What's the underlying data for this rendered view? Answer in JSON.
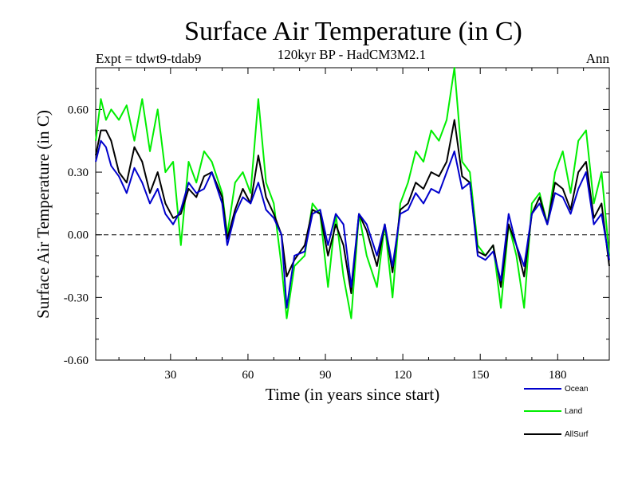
{
  "chart_data": {
    "type": "line",
    "title": "Surface Air Temperature (in C)",
    "subtitle": "120kyr BP - HadCM3M2.1",
    "expt_label": "Expt = tdwt9-tdab9",
    "period_label": "Ann",
    "xlabel": "Time (in years since start)",
    "ylabel": "Surface Air Temperature (in C)",
    "xlim": [
      1,
      200
    ],
    "ylim": [
      -0.6,
      0.8
    ],
    "xticks": [
      30,
      60,
      90,
      120,
      150,
      180
    ],
    "xtick_labels": [
      "30",
      "60",
      "90",
      "120",
      "150",
      "180"
    ],
    "yticks": [
      -0.6,
      -0.3,
      0.0,
      0.3,
      0.6
    ],
    "ytick_labels": [
      "-0.60",
      "-0.30",
      "0.00",
      "0.30",
      "0.60"
    ],
    "zero_line": "dashed",
    "legend_position": "bottom-right",
    "series": [
      {
        "name": "Ocean",
        "color": "#0000cc",
        "x": [
          1,
          3,
          5,
          7,
          10,
          13,
          16,
          19,
          22,
          25,
          28,
          31,
          34,
          37,
          40,
          43,
          46,
          50,
          52,
          55,
          58,
          61,
          64,
          67,
          70,
          73,
          75,
          78,
          82,
          85,
          88,
          91,
          94,
          97,
          100,
          103,
          106,
          110,
          113,
          116,
          119,
          122,
          125,
          128,
          131,
          134,
          137,
          140,
          143,
          146,
          149,
          152,
          155,
          158,
          161,
          164,
          167,
          170,
          173,
          176,
          179,
          182,
          185,
          188,
          191,
          194,
          197,
          200
        ],
        "values": [
          0.35,
          0.45,
          0.42,
          0.33,
          0.28,
          0.2,
          0.32,
          0.25,
          0.15,
          0.22,
          0.1,
          0.05,
          0.12,
          0.25,
          0.2,
          0.22,
          0.3,
          0.15,
          -0.05,
          0.1,
          0.18,
          0.15,
          0.25,
          0.12,
          0.08,
          0.0,
          -0.35,
          -0.1,
          -0.08,
          0.1,
          0.12,
          -0.05,
          0.1,
          0.05,
          -0.25,
          0.1,
          0.05,
          -0.1,
          0.05,
          -0.15,
          0.1,
          0.12,
          0.2,
          0.15,
          0.22,
          0.2,
          0.3,
          0.4,
          0.22,
          0.25,
          -0.1,
          -0.12,
          -0.08,
          -0.22,
          0.1,
          -0.05,
          -0.15,
          0.1,
          0.15,
          0.05,
          0.2,
          0.18,
          0.1,
          0.22,
          0.3,
          0.05,
          0.1,
          -0.12
        ]
      },
      {
        "name": "Land",
        "color": "#00ee00",
        "x": [
          1,
          3,
          5,
          7,
          10,
          13,
          16,
          19,
          22,
          25,
          28,
          31,
          34,
          37,
          40,
          43,
          46,
          50,
          52,
          55,
          58,
          61,
          64,
          67,
          70,
          73,
          75,
          78,
          82,
          85,
          88,
          91,
          94,
          97,
          100,
          103,
          106,
          110,
          113,
          116,
          119,
          122,
          125,
          128,
          131,
          134,
          137,
          140,
          143,
          146,
          149,
          152,
          155,
          158,
          161,
          164,
          167,
          170,
          173,
          176,
          179,
          182,
          185,
          188,
          191,
          194,
          197,
          200
        ],
        "values": [
          0.45,
          0.65,
          0.55,
          0.6,
          0.55,
          0.62,
          0.45,
          0.65,
          0.4,
          0.6,
          0.3,
          0.35,
          -0.05,
          0.35,
          0.25,
          0.4,
          0.35,
          0.2,
          0.0,
          0.25,
          0.3,
          0.2,
          0.65,
          0.25,
          0.15,
          -0.15,
          -0.4,
          -0.15,
          -0.1,
          0.15,
          0.1,
          -0.25,
          0.1,
          -0.2,
          -0.4,
          0.1,
          -0.1,
          -0.25,
          0.05,
          -0.3,
          0.15,
          0.25,
          0.4,
          0.35,
          0.5,
          0.45,
          0.55,
          0.8,
          0.35,
          0.3,
          -0.05,
          -0.1,
          -0.05,
          -0.35,
          0.05,
          -0.1,
          -0.35,
          0.15,
          0.2,
          0.05,
          0.3,
          0.4,
          0.2,
          0.45,
          0.5,
          0.15,
          0.3,
          -0.1
        ]
      },
      {
        "name": "AllSurf",
        "color": "#000000",
        "x": [
          1,
          3,
          5,
          7,
          10,
          13,
          16,
          19,
          22,
          25,
          28,
          31,
          34,
          37,
          40,
          43,
          46,
          50,
          52,
          55,
          58,
          61,
          64,
          67,
          70,
          73,
          75,
          78,
          82,
          85,
          88,
          91,
          94,
          97,
          100,
          103,
          106,
          110,
          113,
          116,
          119,
          122,
          125,
          128,
          131,
          134,
          137,
          140,
          143,
          146,
          149,
          152,
          155,
          158,
          161,
          164,
          167,
          170,
          173,
          176,
          179,
          182,
          185,
          188,
          191,
          194,
          197,
          200
        ],
        "values": [
          0.38,
          0.5,
          0.5,
          0.45,
          0.3,
          0.25,
          0.42,
          0.35,
          0.2,
          0.3,
          0.15,
          0.08,
          0.1,
          0.22,
          0.18,
          0.28,
          0.3,
          0.18,
          -0.02,
          0.12,
          0.22,
          0.15,
          0.38,
          0.18,
          0.1,
          0.0,
          -0.2,
          -0.12,
          -0.05,
          0.12,
          0.1,
          -0.1,
          0.05,
          -0.05,
          -0.28,
          0.1,
          0.02,
          -0.15,
          0.05,
          -0.18,
          0.12,
          0.15,
          0.25,
          0.22,
          0.3,
          0.28,
          0.35,
          0.55,
          0.28,
          0.25,
          -0.08,
          -0.1,
          -0.05,
          -0.25,
          0.05,
          -0.05,
          -0.2,
          0.1,
          0.18,
          0.05,
          0.25,
          0.22,
          0.12,
          0.3,
          0.35,
          0.08,
          0.15,
          -0.15
        ]
      }
    ]
  }
}
